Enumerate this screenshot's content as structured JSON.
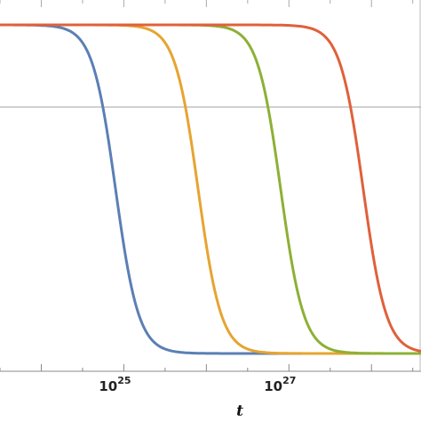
{
  "chart_data": {
    "type": "line",
    "xlabel": "t",
    "x_scale": "log",
    "xlim_exponent": [
      23.5,
      28.6
    ],
    "ylim": [
      0,
      1
    ],
    "reference_line_y": 0.75,
    "x_ticks": [
      {
        "base": "10",
        "exp": "25",
        "exponent": 25
      },
      {
        "base": "10",
        "exp": "27",
        "exponent": 27
      }
    ],
    "series": [
      {
        "color": "#5B7FB5",
        "midpoint_exponent": 24.9,
        "width_decades": 0.14
      },
      {
        "color": "#E6A430",
        "midpoint_exponent": 25.9,
        "width_decades": 0.14
      },
      {
        "color": "#8DB035",
        "midpoint_exponent": 26.9,
        "width_decades": 0.14
      },
      {
        "color": "#E0603A",
        "midpoint_exponent": 27.9,
        "width_decades": 0.14
      }
    ]
  }
}
